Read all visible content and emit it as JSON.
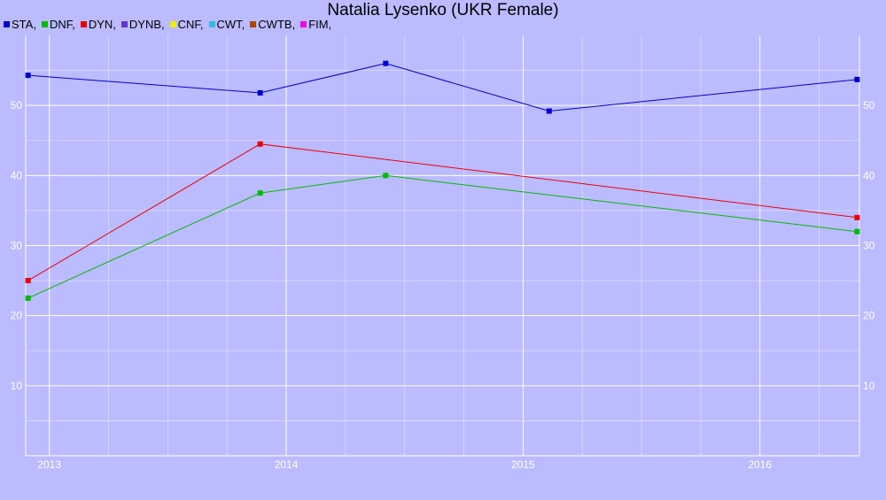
{
  "chart_data": {
    "type": "line",
    "title": "Natalia Lysenko (UKR Female)",
    "xlabel": "",
    "ylabel": "",
    "x_axis": {
      "type": "date",
      "range": [
        2012.9,
        2016.42
      ],
      "ticks": [
        "2013",
        "2014",
        "2015",
        "2016"
      ]
    },
    "y_axis": {
      "range": [
        0,
        60
      ],
      "ticks": [
        10,
        20,
        30,
        40,
        50
      ],
      "labels_left": true,
      "labels_right": true
    },
    "grid": true,
    "legend_position": "top-left",
    "legend": [
      {
        "label": "STA,",
        "color": "#0000cc"
      },
      {
        "label": "DNF,",
        "color": "#00bb00"
      },
      {
        "label": "DYN,",
        "color": "#ee0000"
      },
      {
        "label": "DYNB,",
        "color": "#6633cc"
      },
      {
        "label": "CNF,",
        "color": "#eeee00"
      },
      {
        "label": "CWT,",
        "color": "#33bbdd"
      },
      {
        "label": "CWTB,",
        "color": "#aa4400"
      },
      {
        "label": "FIM,",
        "color": "#ee00ee"
      }
    ],
    "series": [
      {
        "name": "STA",
        "color": "#0000cc",
        "points": [
          [
            2012.91,
            54.3
          ],
          [
            2013.89,
            51.8
          ],
          [
            2014.42,
            56.0
          ],
          [
            2015.11,
            49.2
          ],
          [
            2016.41,
            53.7
          ]
        ]
      },
      {
        "name": "DNF",
        "color": "#00bb00",
        "points": [
          [
            2012.91,
            22.5
          ],
          [
            2013.89,
            37.5
          ],
          [
            2014.42,
            40.0
          ],
          [
            2016.41,
            32.0
          ]
        ]
      },
      {
        "name": "DYN",
        "color": "#ee0000",
        "points": [
          [
            2012.91,
            25.0
          ],
          [
            2013.89,
            44.5
          ],
          [
            2016.41,
            34.0
          ]
        ]
      }
    ]
  }
}
